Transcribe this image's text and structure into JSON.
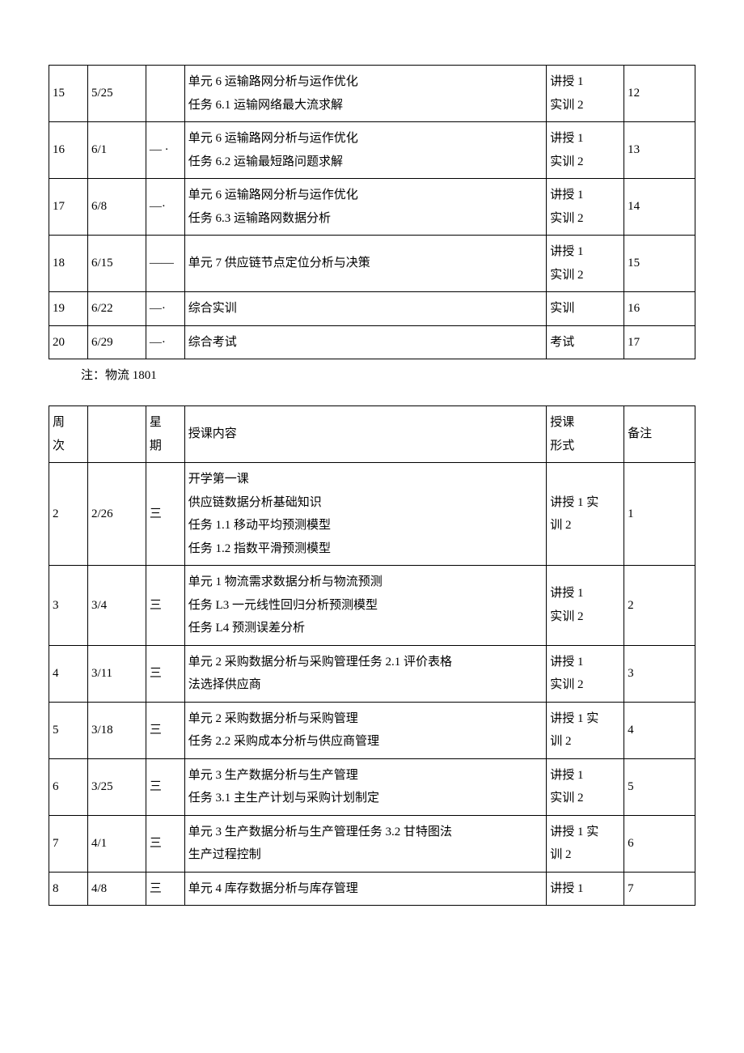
{
  "table1": {
    "rows": [
      {
        "week": "15",
        "date": "5/25",
        "day": "",
        "content": "单元 6 运输路网分析与运作优化\n任务 6.1 运输网络最大流求解",
        "form": "讲授 1\n实训 2",
        "note": "12"
      },
      {
        "week": "16",
        "date": "6/1",
        "day": "— ·",
        "content": "单元 6 运输路网分析与运作优化\n任务 6.2 运输最短路问题求解",
        "form": "讲授 1\n实训 2",
        "note": "13"
      },
      {
        "week": "17",
        "date": "6/8",
        "day": "—·",
        "content": "单元 6 运输路网分析与运作优化\n任务 6.3 运输路网数据分析",
        "form": "讲授 1\n实训 2",
        "note": "14"
      },
      {
        "week": "18",
        "date": "6/15",
        "day": "——",
        "content": "单元 7 供应链节点定位分析与决策",
        "form": "讲授 1\n实训 2",
        "note": "15"
      },
      {
        "week": "19",
        "date": "6/22",
        "day": "—·",
        "content": "综合实训",
        "form": "实训",
        "note": "16"
      },
      {
        "week": "20",
        "date": "6/29",
        "day": "—·",
        "content": "综合考试",
        "form": "考试",
        "note": "17"
      }
    ]
  },
  "note_text": "注：物流 1801",
  "table2": {
    "headers": {
      "week": "周\n次",
      "date": "",
      "day": "星\n期",
      "content": "授课内容",
      "form": "授课\n形式",
      "note": "备注"
    },
    "rows": [
      {
        "week": "2",
        "date": "2/26",
        "day": "三",
        "content": "开学第一课\n供应链数据分析基础知识\n任务 1.1 移动平均预测模型\n任务 1.2 指数平滑预测模型",
        "form": "讲授 1 实\n训 2",
        "note": "1"
      },
      {
        "week": "3",
        "date": "3/4",
        "day": "三",
        "content": "单元 1 物流需求数据分析与物流预测\n任务 L3 一元线性回归分析预测模型\n任务 L4 预测误差分析",
        "form": "讲授 1\n实训 2",
        "note": "2"
      },
      {
        "week": "4",
        "date": "3/11",
        "day": "三",
        "content": "单元 2 采购数据分析与采购管理任务 2.1 评价表格\n法选择供应商",
        "form": "讲授 1\n实训 2",
        "note": "3"
      },
      {
        "week": "5",
        "date": "3/18",
        "day": "三",
        "content": "单元 2 采购数据分析与采购管理\n任务 2.2 采购成本分析与供应商管理",
        "form": "讲授 1 实\n训 2",
        "note": "4"
      },
      {
        "week": "6",
        "date": "3/25",
        "day": "三",
        "content": "单元 3 生产数据分析与生产管理\n任务 3.1 主生产计划与采购计划制定",
        "form": "讲授 1\n实训 2",
        "note": "5"
      },
      {
        "week": "7",
        "date": "4/1",
        "day": "三",
        "content": "单元 3 生产数据分析与生产管理任务 3.2 甘特图法\n生产过程控制",
        "form": "讲授 1 实\n训 2",
        "note": "6"
      },
      {
        "week": "8",
        "date": "4/8",
        "day": "三",
        "content": "单元 4 库存数据分析与库存管理",
        "form": "讲授 1",
        "note": "7"
      }
    ]
  }
}
